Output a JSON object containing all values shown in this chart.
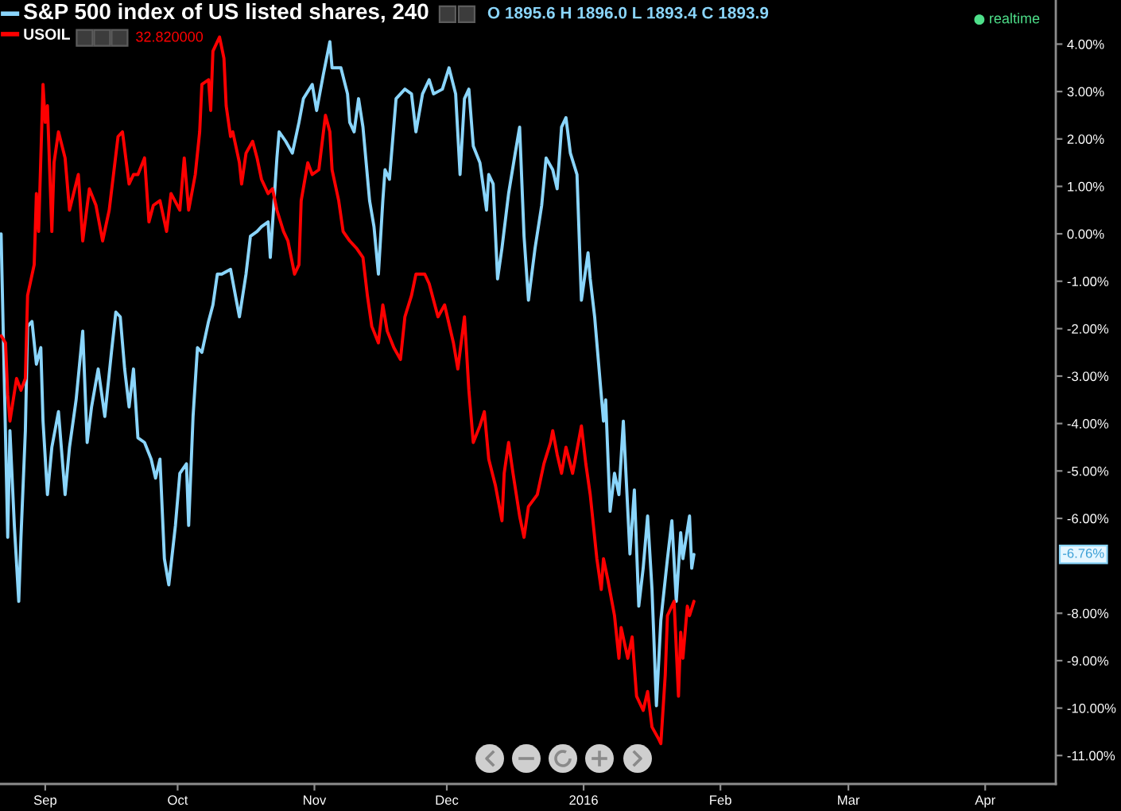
{
  "chart_data": {
    "type": "line",
    "legend": "top left",
    "xlim": [
      "2015-08-21T18:00",
      "2016-04-17"
    ],
    "ylim": [
      -11.6,
      4.93
    ],
    "xticks": [
      {
        "value": "2015-09-01",
        "label": "Sep"
      },
      {
        "value": "2015-10-01",
        "label": "Oct"
      },
      {
        "value": "2015-11-01",
        "label": "Nov"
      },
      {
        "value": "2015-12-01",
        "label": "Dec"
      },
      {
        "value": "2016-01-01",
        "label": "2016"
      },
      {
        "value": "2016-02-01",
        "label": "Feb"
      },
      {
        "value": "2016-03-01",
        "label": "Mar"
      },
      {
        "value": "2016-04-01",
        "label": "Apr"
      }
    ],
    "yticks": [
      {
        "value": 4,
        "label": "4.00%"
      },
      {
        "value": 3,
        "label": "3.00%"
      },
      {
        "value": 2,
        "label": "2.00%"
      },
      {
        "value": 1,
        "label": "1.00%"
      },
      {
        "value": 0,
        "label": "0.00%"
      },
      {
        "value": -1,
        "label": "-1.00%"
      },
      {
        "value": -2,
        "label": "-2.00%"
      },
      {
        "value": -3,
        "label": "-3.00%"
      },
      {
        "value": -4,
        "label": "-4.00%"
      },
      {
        "value": -5,
        "label": "-5.00%"
      },
      {
        "value": -6,
        "label": "-6.00%"
      },
      {
        "value": -8,
        "label": "-8.00%"
      },
      {
        "value": -9,
        "label": "-9.00%"
      },
      {
        "value": -10,
        "label": "-10.00%"
      },
      {
        "value": -11,
        "label": "-11.00%"
      }
    ],
    "series": [
      {
        "name": "S&P 500 index of US listed shares, 240",
        "color": "#8ad5fb",
        "x": [
          "2015-08-22",
          "2015-08-23T12:00",
          "2015-08-24",
          "2015-08-25",
          "2015-08-26",
          "2015-08-26T12:00",
          "2015-08-27T12:00",
          "2015-08-28",
          "2015-08-29",
          "2015-08-30",
          "2015-08-31",
          "2015-08-31T12:00",
          "2015-09-01T12:00",
          "2015-09-02T12:00",
          "2015-09-04",
          "2015-09-05T12:00",
          "2015-09-06T12:00",
          "2015-09-08",
          "2015-09-09T12:00",
          "2015-09-10T12:00",
          "2015-09-11T12:00",
          "2015-09-13",
          "2015-09-14T12:00",
          "2015-09-16",
          "2015-09-17",
          "2015-09-18",
          "2015-09-19",
          "2015-09-20",
          "2015-09-21",
          "2015-09-22",
          "2015-09-23T12:00",
          "2015-09-25",
          "2015-09-26",
          "2015-09-27",
          "2015-09-28",
          "2015-09-29",
          "2015-09-30T12:00",
          "2015-10-01T12:00",
          "2015-10-03",
          "2015-10-03T12:00",
          "2015-10-04T12:00",
          "2015-10-05T12:00",
          "2015-10-06T12:00",
          "2015-10-08",
          "2015-10-09",
          "2015-10-10",
          "2015-10-11",
          "2015-10-13",
          "2015-10-14T12:00",
          "2015-10-15",
          "2015-10-16T12:00",
          "2015-10-17T12:00",
          "2015-10-19",
          "2015-10-20",
          "2015-10-21T12:00",
          "2015-10-22",
          "2015-10-23T12:00",
          "2015-10-24",
          "2015-10-25T12:00",
          "2015-10-27",
          "2015-10-28T12:00",
          "2015-10-29T12:00",
          "2015-10-31T12:00",
          "2015-11-01T12:00",
          "2015-11-03",
          "2015-11-04T12:00",
          "2015-11-05",
          "2015-11-07",
          "2015-11-08T12:00",
          "2015-11-09",
          "2015-11-10",
          "2015-11-11",
          "2015-11-12",
          "2015-11-13T12:00",
          "2015-11-14T12:00",
          "2015-11-15T12:00",
          "2015-11-16T12:00",
          "2015-11-17",
          "2015-11-18",
          "2015-11-19T12:00",
          "2015-11-20T12:00",
          "2015-11-21T12:00",
          "2015-11-23",
          "2015-11-24",
          "2015-11-25T12:00",
          "2015-11-27",
          "2015-11-28",
          "2015-11-30",
          "2015-12-01T12:00",
          "2015-12-03",
          "2015-12-04",
          "2015-12-05",
          "2015-12-06",
          "2015-12-07",
          "2015-12-08T12:00",
          "2015-12-10",
          "2015-12-10T12:00",
          "2015-12-11T12:00",
          "2015-12-12T12:00",
          "2015-12-13T12:00",
          "2015-12-15",
          "2015-12-16T12:00",
          "2015-12-17T12:00",
          "2015-12-18T12:00",
          "2015-12-19T12:00",
          "2015-12-21",
          "2015-12-22T12:00",
          "2015-12-23T12:00",
          "2015-12-25",
          "2015-12-26",
          "2015-12-27",
          "2015-12-28",
          "2015-12-29",
          "2015-12-30T12:00",
          "2015-12-31T12:00",
          "2016-01-02",
          "2016-01-02T12:00",
          "2016-01-03T12:00",
          "2016-01-04T12:00",
          "2016-01-05T12:00",
          "2016-01-06",
          "2016-01-07",
          "2016-01-08",
          "2016-01-09",
          "2016-01-10",
          "2016-01-11T12:00",
          "2016-01-12T12:00",
          "2016-01-13T12:00",
          "2016-01-14T12:00",
          "2016-01-15T12:00",
          "2016-01-16T12:00",
          "2016-01-17T12:00",
          "2016-01-18T12:00",
          "2016-01-20",
          "2016-01-21",
          "2016-01-22",
          "2016-01-23",
          "2016-01-23T12:00",
          "2016-01-25",
          "2016-01-25T12:00",
          "2016-01-26"
        ],
        "values": [
          0.0,
          -6.4,
          -4.15,
          -6.15,
          -7.75,
          -6.4,
          -4.15,
          -1.95,
          -1.85,
          -2.75,
          -2.4,
          -3.95,
          -5.5,
          -4.5,
          -3.75,
          -5.5,
          -4.5,
          -3.5,
          -2.05,
          -4.4,
          -3.65,
          -2.85,
          -3.85,
          -2.5,
          -1.65,
          -1.75,
          -2.85,
          -3.65,
          -2.85,
          -4.3,
          -4.4,
          -4.75,
          -5.15,
          -4.75,
          -6.85,
          -7.4,
          -6.15,
          -5.05,
          -4.85,
          -6.15,
          -3.85,
          -2.4,
          -2.5,
          -1.85,
          -1.5,
          -0.85,
          -0.85,
          -0.75,
          -1.5,
          -1.75,
          -0.85,
          -0.05,
          0.05,
          0.15,
          0.25,
          -0.5,
          1.6,
          2.15,
          1.95,
          1.7,
          2.35,
          2.85,
          3.15,
          2.6,
          3.35,
          4.05,
          3.5,
          3.5,
          2.95,
          2.35,
          2.15,
          2.85,
          2.25,
          0.7,
          0.15,
          -0.85,
          0.7,
          1.35,
          1.15,
          2.85,
          2.95,
          3.05,
          2.95,
          2.15,
          2.95,
          3.25,
          2.95,
          3.05,
          3.5,
          2.95,
          1.25,
          2.85,
          3.05,
          1.85,
          1.5,
          0.5,
          1.25,
          1.05,
          -0.95,
          -0.3,
          0.85,
          1.7,
          2.25,
          -0.05,
          -1.4,
          -0.3,
          0.6,
          1.6,
          1.35,
          0.95,
          2.25,
          2.45,
          1.7,
          1.25,
          -1.4,
          -0.4,
          -0.95,
          -1.75,
          -2.85,
          -3.95,
          -3.5,
          -5.85,
          -5.05,
          -5.5,
          -3.95,
          -6.75,
          -5.4,
          -7.85,
          -7.05,
          -5.95,
          -7.5,
          -9.95,
          -8.15,
          -6.85,
          -6.05,
          -7.75,
          -6.3,
          -6.85,
          -5.95,
          -7.05,
          -6.76
        ]
      },
      {
        "name": "USOIL",
        "color": "#ff0000",
        "x": [
          "2015-08-22",
          "2015-08-23",
          "2015-08-23T12:00",
          "2015-08-24",
          "2015-08-25T12:00",
          "2015-08-26T12:00",
          "2015-08-27T12:00",
          "2015-08-28",
          "2015-08-29T12:00",
          "2015-08-30",
          "2015-08-30T12:00",
          "2015-08-31T12:00",
          "2015-09-01",
          "2015-09-01T12:00",
          "2015-09-02T12:00",
          "2015-09-03",
          "2015-09-04",
          "2015-09-05T12:00",
          "2015-09-06T12:00",
          "2015-09-08T12:00",
          "2015-09-09T12:00",
          "2015-09-11",
          "2015-09-12T12:00",
          "2015-09-14",
          "2015-09-15T12:00",
          "2015-09-17T12:00",
          "2015-09-18T12:00",
          "2015-09-20",
          "2015-09-21",
          "2015-09-22",
          "2015-09-23T12:00",
          "2015-09-24T12:00",
          "2015-09-25T12:00",
          "2015-09-27",
          "2015-09-28T12:00",
          "2015-09-29T12:00",
          "2015-10-01T12:00",
          "2015-10-02T12:00",
          "2015-10-03T12:00",
          "2015-10-05",
          "2015-10-06",
          "2015-10-06T12:00",
          "2015-10-08",
          "2015-10-08T12:00",
          "2015-10-09",
          "2015-10-10T12:00",
          "2015-10-11T12:00",
          "2015-10-12",
          "2015-10-13",
          "2015-10-13T12:00",
          "2015-10-15",
          "2015-10-15T12:00",
          "2015-10-16T12:00",
          "2015-10-18",
          "2015-10-19",
          "2015-10-20",
          "2015-10-21T12:00",
          "2015-10-22T12:00",
          "2015-10-23T12:00",
          "2015-10-25",
          "2015-10-26",
          "2015-10-27T12:00",
          "2015-10-28T12:00",
          "2015-10-29",
          "2015-10-30T12:00",
          "2015-10-31T12:00",
          "2015-11-02",
          "2015-11-03T12:00",
          "2015-11-04T12:00",
          "2015-11-05",
          "2015-11-06T12:00",
          "2015-11-07T12:00",
          "2015-11-09",
          "2015-11-10T12:00",
          "2015-11-12",
          "2015-11-13",
          "2015-11-14",
          "2015-11-15T12:00",
          "2015-11-16T12:00",
          "2015-11-17T12:00",
          "2015-11-19",
          "2015-11-20T12:00",
          "2015-11-21T12:00",
          "2015-11-23",
          "2015-11-24",
          "2015-11-26",
          "2015-11-27",
          "2015-11-29",
          "2015-11-30T12:00",
          "2015-12-02T12:00",
          "2015-12-03T12:00",
          "2015-12-05",
          "2015-12-06",
          "2015-12-07",
          "2015-12-08T12:00",
          "2015-12-09T12:00",
          "2015-12-10T12:00",
          "2015-12-12",
          "2015-12-13T12:00",
          "2015-12-14",
          "2015-12-15",
          "2015-12-16",
          "2015-12-17T12:00",
          "2015-12-18T12:00",
          "2015-12-19T12:00",
          "2015-12-21T12:00",
          "2015-12-23",
          "2015-12-24T12:00",
          "2015-12-25",
          "2015-12-26",
          "2015-12-27",
          "2015-12-28",
          "2015-12-29T12:00",
          "2015-12-31",
          "2015-12-31T12:00",
          "2016-01-01T12:00",
          "2016-01-02T12:00",
          "2016-01-04",
          "2016-01-05",
          "2016-01-05T12:00",
          "2016-01-06T12:00",
          "2016-01-08",
          "2016-01-09",
          "2016-01-09T12:00",
          "2016-01-11",
          "2016-01-12",
          "2016-01-13",
          "2016-01-14T12:00",
          "2016-01-15T12:00",
          "2016-01-16T12:00",
          "2016-01-18",
          "2016-01-18T12:00",
          "2016-01-19T12:00",
          "2016-01-20",
          "2016-01-21T12:00",
          "2016-01-22T12:00",
          "2016-01-23",
          "2016-01-23T12:00",
          "2016-01-24T12:00",
          "2016-01-25",
          "2016-01-26"
        ],
        "values": [
          -2.15,
          -2.3,
          -3.4,
          -3.95,
          -3.05,
          -3.3,
          -3.05,
          -1.3,
          -0.65,
          0.85,
          0.05,
          3.15,
          2.35,
          2.7,
          0.05,
          1.5,
          2.15,
          1.6,
          0.5,
          1.25,
          -0.15,
          0.95,
          0.6,
          -0.15,
          0.5,
          2.05,
          2.15,
          1.05,
          1.25,
          1.25,
          1.6,
          0.25,
          0.6,
          0.7,
          0.05,
          0.85,
          0.5,
          1.6,
          0.5,
          1.25,
          2.15,
          3.15,
          3.25,
          2.6,
          3.85,
          4.15,
          3.7,
          2.7,
          2.05,
          2.15,
          1.5,
          1.05,
          1.7,
          1.95,
          1.6,
          1.15,
          0.85,
          0.95,
          0.5,
          0.05,
          -0.15,
          -0.85,
          -0.65,
          0.7,
          1.5,
          1.25,
          1.35,
          2.5,
          2.15,
          1.35,
          0.7,
          0.05,
          -0.15,
          -0.3,
          -0.5,
          -1.3,
          -1.95,
          -2.3,
          -1.5,
          -2.05,
          -2.4,
          -2.65,
          -1.75,
          -1.3,
          -0.85,
          -0.85,
          -1.05,
          -1.75,
          -1.5,
          -2.3,
          -2.85,
          -1.75,
          -3.3,
          -4.4,
          -4.05,
          -3.75,
          -4.75,
          -5.3,
          -6.05,
          -5.05,
          -4.4,
          -5.05,
          -5.95,
          -6.4,
          -5.75,
          -5.5,
          -4.85,
          -4.4,
          -4.15,
          -4.65,
          -5.05,
          -4.5,
          -5.05,
          -4.3,
          -4.05,
          -4.85,
          -5.5,
          -6.85,
          -7.5,
          -6.85,
          -7.3,
          -8.05,
          -8.95,
          -8.3,
          -8.95,
          -8.5,
          -9.75,
          -10.05,
          -9.65,
          -10.4,
          -10.65,
          -10.75,
          -9.3,
          -8.05,
          -7.75,
          -9.75,
          -8.4,
          -8.95,
          -7.85,
          -8.05,
          -7.75
        ]
      }
    ],
    "annotations": [
      "O 1895.6 H 1896.0 L 1893.4 C 1893.9",
      "32.820000",
      "realtime",
      {
        "text": "-6.76%",
        "y": -6.76
      }
    ]
  }
}
